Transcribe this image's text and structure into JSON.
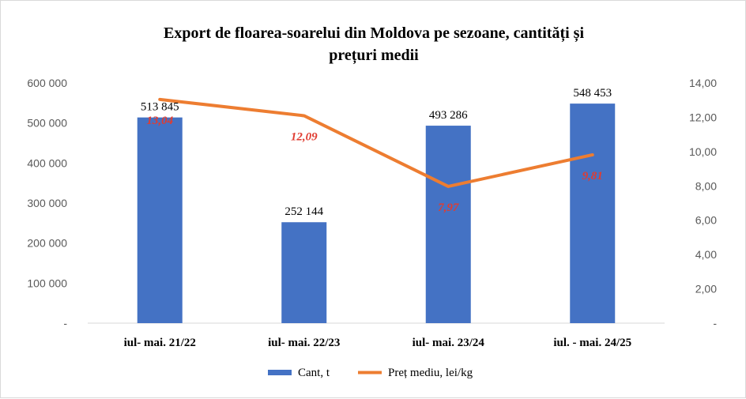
{
  "chart_data": {
    "type": "bar",
    "title_line1": "Export de floarea-soarelui  din  Moldova pe sezoane, cantități și",
    "title_line2": "prețuri medii",
    "categories": [
      "iul- mai. 21/22",
      "iul- mai. 22/23",
      "iul- mai. 23/24",
      "iul. - mai. 24/25"
    ],
    "series": [
      {
        "name": "Cant, t",
        "type": "bar",
        "axis": "left",
        "color": "#4472c4",
        "values": [
          513845,
          252144,
          493286,
          548453
        ],
        "labels": [
          "513 845",
          "252 144",
          "493 286",
          "548 453"
        ]
      },
      {
        "name": "Preț mediu, lei/kg",
        "type": "line",
        "axis": "right",
        "color": "#ed7d31",
        "values": [
          13.04,
          12.09,
          7.97,
          9.81
        ],
        "labels": [
          "13,04",
          "12,09",
          "7,97",
          "9,81"
        ],
        "label_color": "#e03c31"
      }
    ],
    "y_left": {
      "ylim": [
        0,
        600000
      ],
      "ticks": [
        0,
        100000,
        200000,
        300000,
        400000,
        500000,
        600000
      ],
      "tick_labels": [
        "-",
        "100 000",
        "200 000",
        "300 000",
        "400 000",
        "500 000",
        "600 000"
      ]
    },
    "y_right": {
      "ylim": [
        0,
        14
      ],
      "ticks": [
        0,
        2,
        4,
        6,
        8,
        10,
        12,
        14
      ],
      "tick_labels": [
        "-",
        "2,00",
        "4,00",
        "6,00",
        "8,00",
        "10,00",
        "12,00",
        "14,00"
      ]
    },
    "grid": false,
    "legend_position": "bottom"
  }
}
